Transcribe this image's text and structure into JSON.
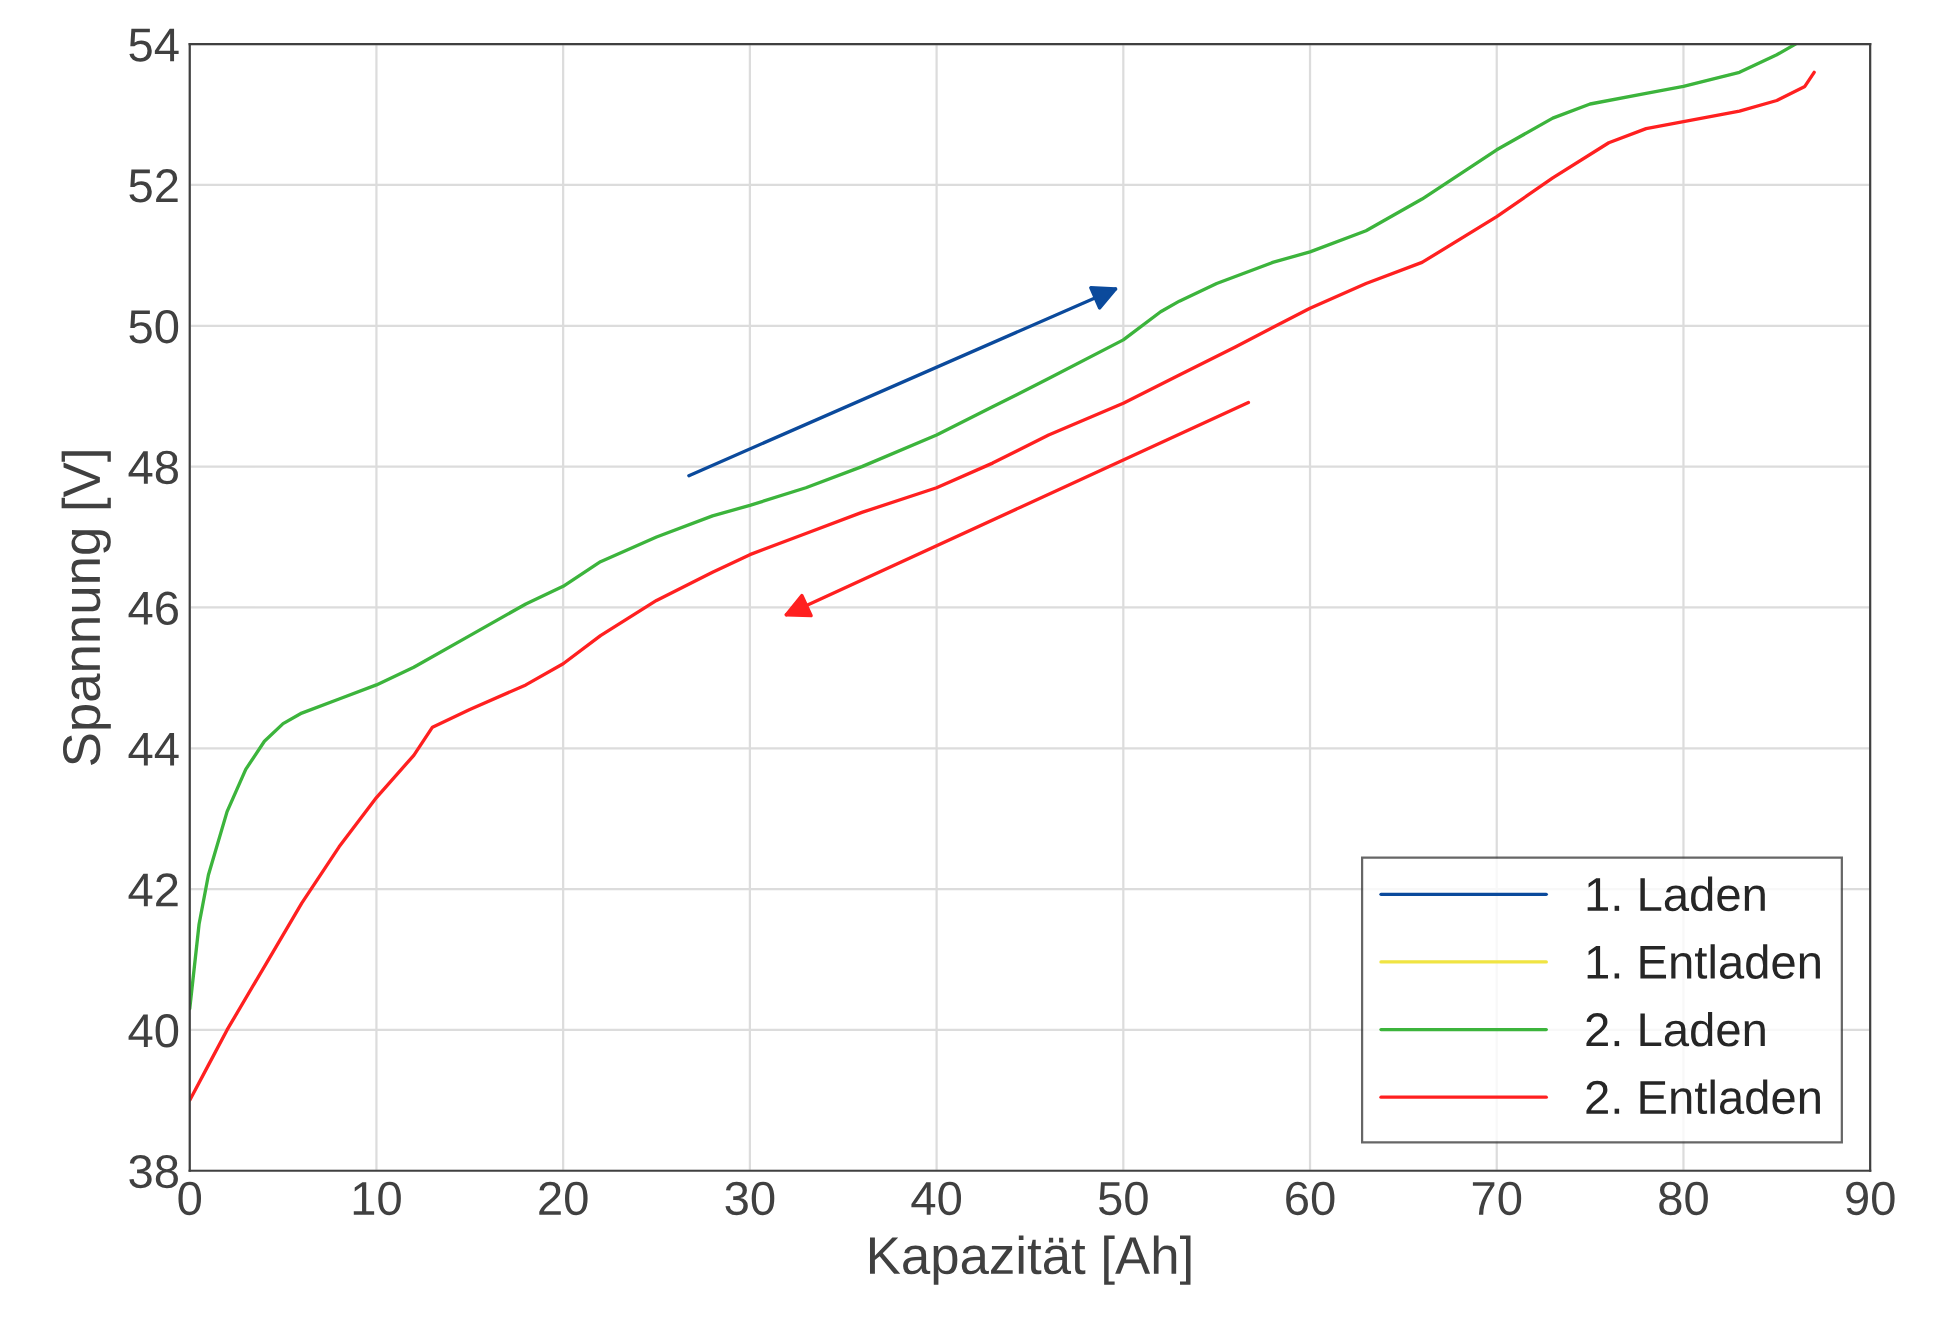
{
  "chart_data": {
    "type": "line",
    "xlabel": "Kapazität [Ah]",
    "ylabel": "Spannung [V]",
    "xlim": [
      0,
      90
    ],
    "xticks": [
      0,
      10,
      20,
      30,
      40,
      50,
      60,
      70,
      80,
      90
    ],
    "ylim": [
      38,
      54
    ],
    "yticks": [
      38,
      40,
      42,
      44,
      46,
      48,
      50,
      52,
      54
    ],
    "grid": true,
    "legend": "bottom right",
    "line_style": "solid",
    "series": [
      {
        "name": "1. Laden",
        "color": "#0b4a9c"
      },
      {
        "name": "1. Entladen",
        "color": "#f0e442"
      },
      {
        "name": "2. Laden",
        "color": "#3cb43c",
        "x": [
          0,
          0.5,
          1,
          2,
          3,
          4,
          5,
          6,
          8,
          10,
          12,
          15,
          18,
          20,
          22,
          25,
          28,
          30,
          33,
          36,
          40,
          43,
          46,
          50,
          52,
          53,
          55,
          58,
          60,
          63,
          66,
          70,
          73,
          75,
          78,
          80,
          83,
          85,
          86
        ],
        "values": [
          40.3,
          41.5,
          42.2,
          43.1,
          43.7,
          44.1,
          44.35,
          44.5,
          44.7,
          44.9,
          45.15,
          45.6,
          46.05,
          46.3,
          46.65,
          47.0,
          47.3,
          47.45,
          47.7,
          48.0,
          48.45,
          48.85,
          49.25,
          49.8,
          50.2,
          50.35,
          50.6,
          50.9,
          51.05,
          51.35,
          51.8,
          52.5,
          52.95,
          53.15,
          53.3,
          53.4,
          53.6,
          53.85,
          54.0
        ]
      },
      {
        "name": "2. Entladen",
        "color": "#ff2020",
        "x": [
          0,
          1,
          2,
          4,
          6,
          8,
          10,
          12,
          13,
          15,
          18,
          20,
          22,
          25,
          28,
          30,
          33,
          36,
          40,
          43,
          46,
          50,
          53,
          56,
          60,
          63,
          66,
          70,
          73,
          76,
          78,
          80,
          83,
          85,
          86.5,
          87
        ],
        "values": [
          39.0,
          39.5,
          40.0,
          40.9,
          41.8,
          42.6,
          43.3,
          43.9,
          44.3,
          44.55,
          44.9,
          45.2,
          45.6,
          46.1,
          46.5,
          46.75,
          47.05,
          47.35,
          47.7,
          48.05,
          48.45,
          48.9,
          49.3,
          49.7,
          50.25,
          50.6,
          50.9,
          51.55,
          52.1,
          52.6,
          52.8,
          52.9,
          53.05,
          53.2,
          53.4,
          53.6
        ]
      }
    ]
  }
}
